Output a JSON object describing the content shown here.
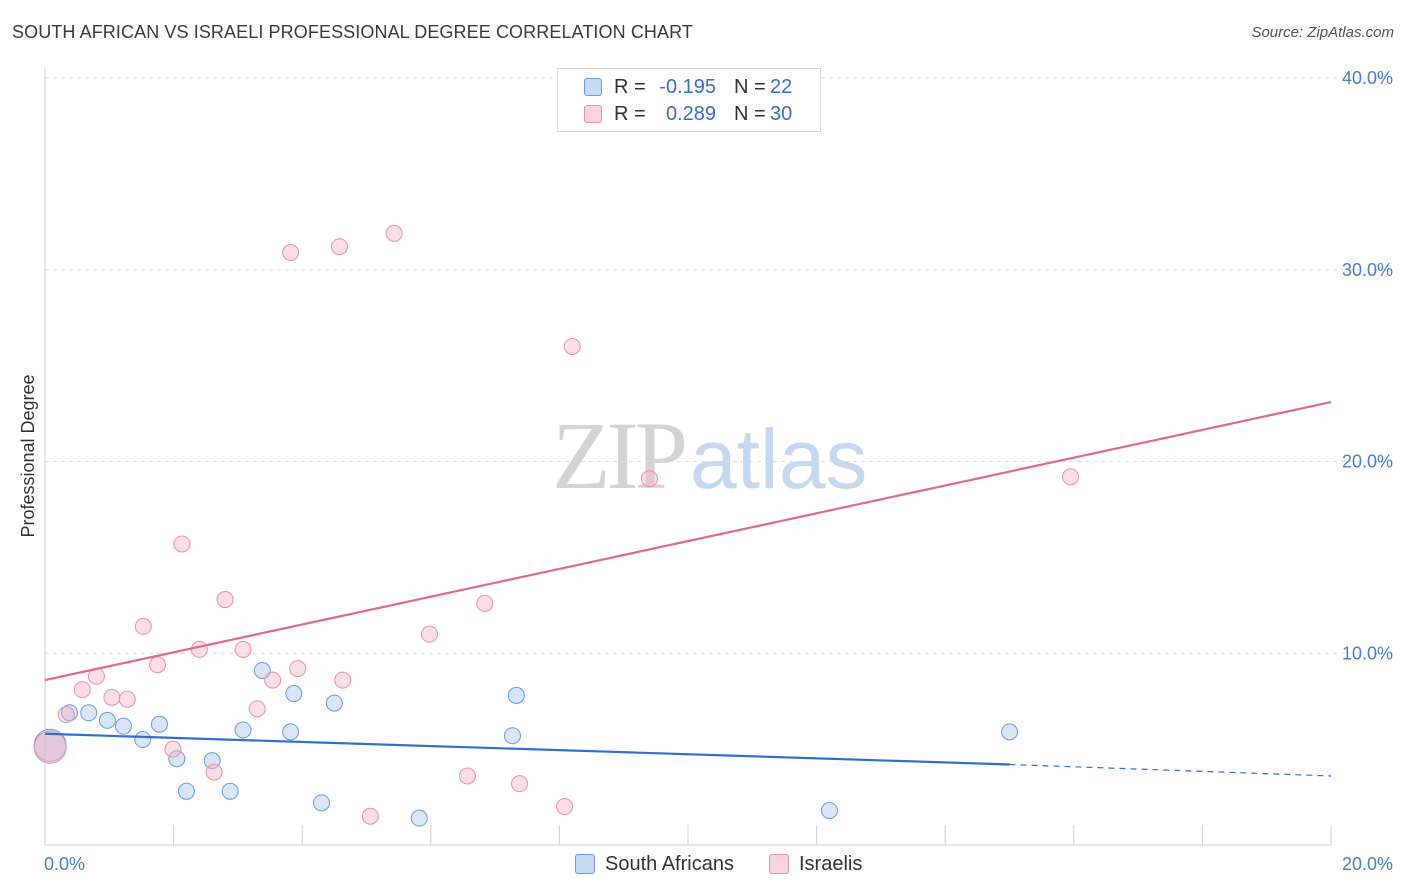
{
  "header": {
    "title": "SOUTH AFRICAN VS ISRAELI PROFESSIONAL DEGREE CORRELATION CHART",
    "source": "Source: ZipAtlas.com"
  },
  "watermark": {
    "zip": "ZIP",
    "atlas": "atlas"
  },
  "legend": {
    "rows": [
      {
        "r_label": "R =",
        "r_value": "-0.195",
        "n_label": "N =",
        "n_value": "22",
        "color": "#a8c8f0"
      },
      {
        "r_label": "R =",
        "r_value": "0.289",
        "n_label": "N =",
        "n_value": "30",
        "color": "#f6b6c8"
      }
    ]
  },
  "bottom_legend": {
    "items": [
      {
        "label": "South Africans",
        "color": "#a8c8f0"
      },
      {
        "label": "Israelis",
        "color": "#f6b6c8"
      }
    ]
  },
  "chart_data": {
    "type": "scatter",
    "title": "SOUTH AFRICAN VS ISRAELI PROFESSIONAL DEGREE CORRELATION CHART",
    "xlabel": "",
    "ylabel": "Professional Degree",
    "xlim": [
      0,
      20
    ],
    "ylim": [
      0,
      40
    ],
    "x_ticks": [
      0,
      20
    ],
    "x_tick_labels": [
      "0.0%",
      "20.0%"
    ],
    "y_ticks": [
      10,
      20,
      30,
      40
    ],
    "y_tick_labels": [
      "10.0%",
      "20.0%",
      "30.0%",
      "40.0%"
    ],
    "grid": true,
    "series": [
      {
        "name": "South Africans",
        "color": "#6a9ce0",
        "fill": "#a8c8f0",
        "line_color": "#2f6fd0",
        "trend": {
          "x0": 0,
          "y0": 5.8,
          "x1": 15.0,
          "y1": 4.2,
          "dashed_to_x": 20,
          "dashed_to_y": 3.6
        },
        "points": [
          {
            "x": 0.08,
            "y": 5.2,
            "big": true
          },
          {
            "x": 0.38,
            "y": 6.9
          },
          {
            "x": 0.68,
            "y": 6.9
          },
          {
            "x": 0.97,
            "y": 6.5
          },
          {
            "x": 1.22,
            "y": 6.2
          },
          {
            "x": 1.52,
            "y": 5.5
          },
          {
            "x": 1.78,
            "y": 6.3
          },
          {
            "x": 2.05,
            "y": 4.5
          },
          {
            "x": 2.2,
            "y": 2.8
          },
          {
            "x": 2.6,
            "y": 4.4
          },
          {
            "x": 2.88,
            "y": 2.8
          },
          {
            "x": 3.08,
            "y": 6.0
          },
          {
            "x": 3.38,
            "y": 9.1
          },
          {
            "x": 3.82,
            "y": 5.9
          },
          {
            "x": 3.87,
            "y": 7.9
          },
          {
            "x": 4.3,
            "y": 2.2
          },
          {
            "x": 4.5,
            "y": 7.4
          },
          {
            "x": 5.82,
            "y": 1.4
          },
          {
            "x": 7.27,
            "y": 5.7
          },
          {
            "x": 7.33,
            "y": 7.8
          },
          {
            "x": 12.2,
            "y": 1.8
          },
          {
            "x": 15.0,
            "y": 5.9
          }
        ]
      },
      {
        "name": "Israelis",
        "color": "#ec8fab",
        "fill": "#f6b6c8",
        "line_color": "#e06a92",
        "trend": {
          "x0": 0,
          "y0": 8.6,
          "x1": 20,
          "y1": 23.1
        },
        "points": [
          {
            "x": 0.08,
            "y": 5.1,
            "big": true
          },
          {
            "x": 0.33,
            "y": 6.8
          },
          {
            "x": 0.58,
            "y": 8.1
          },
          {
            "x": 0.8,
            "y": 8.8
          },
          {
            "x": 1.04,
            "y": 7.7
          },
          {
            "x": 1.28,
            "y": 7.6
          },
          {
            "x": 1.53,
            "y": 11.4
          },
          {
            "x": 1.75,
            "y": 9.4
          },
          {
            "x": 1.99,
            "y": 5.0
          },
          {
            "x": 2.13,
            "y": 15.7
          },
          {
            "x": 2.4,
            "y": 10.2
          },
          {
            "x": 2.63,
            "y": 3.8
          },
          {
            "x": 2.8,
            "y": 12.8
          },
          {
            "x": 3.08,
            "y": 10.2
          },
          {
            "x": 3.3,
            "y": 7.1
          },
          {
            "x": 3.54,
            "y": 8.6
          },
          {
            "x": 3.82,
            "y": 30.9
          },
          {
            "x": 3.93,
            "y": 9.2
          },
          {
            "x": 4.58,
            "y": 31.2
          },
          {
            "x": 4.63,
            "y": 8.6
          },
          {
            "x": 5.06,
            "y": 1.5
          },
          {
            "x": 5.43,
            "y": 31.9
          },
          {
            "x": 5.98,
            "y": 11.0
          },
          {
            "x": 6.57,
            "y": 3.6
          },
          {
            "x": 6.84,
            "y": 12.6
          },
          {
            "x": 7.38,
            "y": 3.2
          },
          {
            "x": 8.08,
            "y": 2.0
          },
          {
            "x": 8.2,
            "y": 26.0
          },
          {
            "x": 9.4,
            "y": 19.1
          },
          {
            "x": 15.95,
            "y": 19.2
          }
        ]
      }
    ]
  }
}
